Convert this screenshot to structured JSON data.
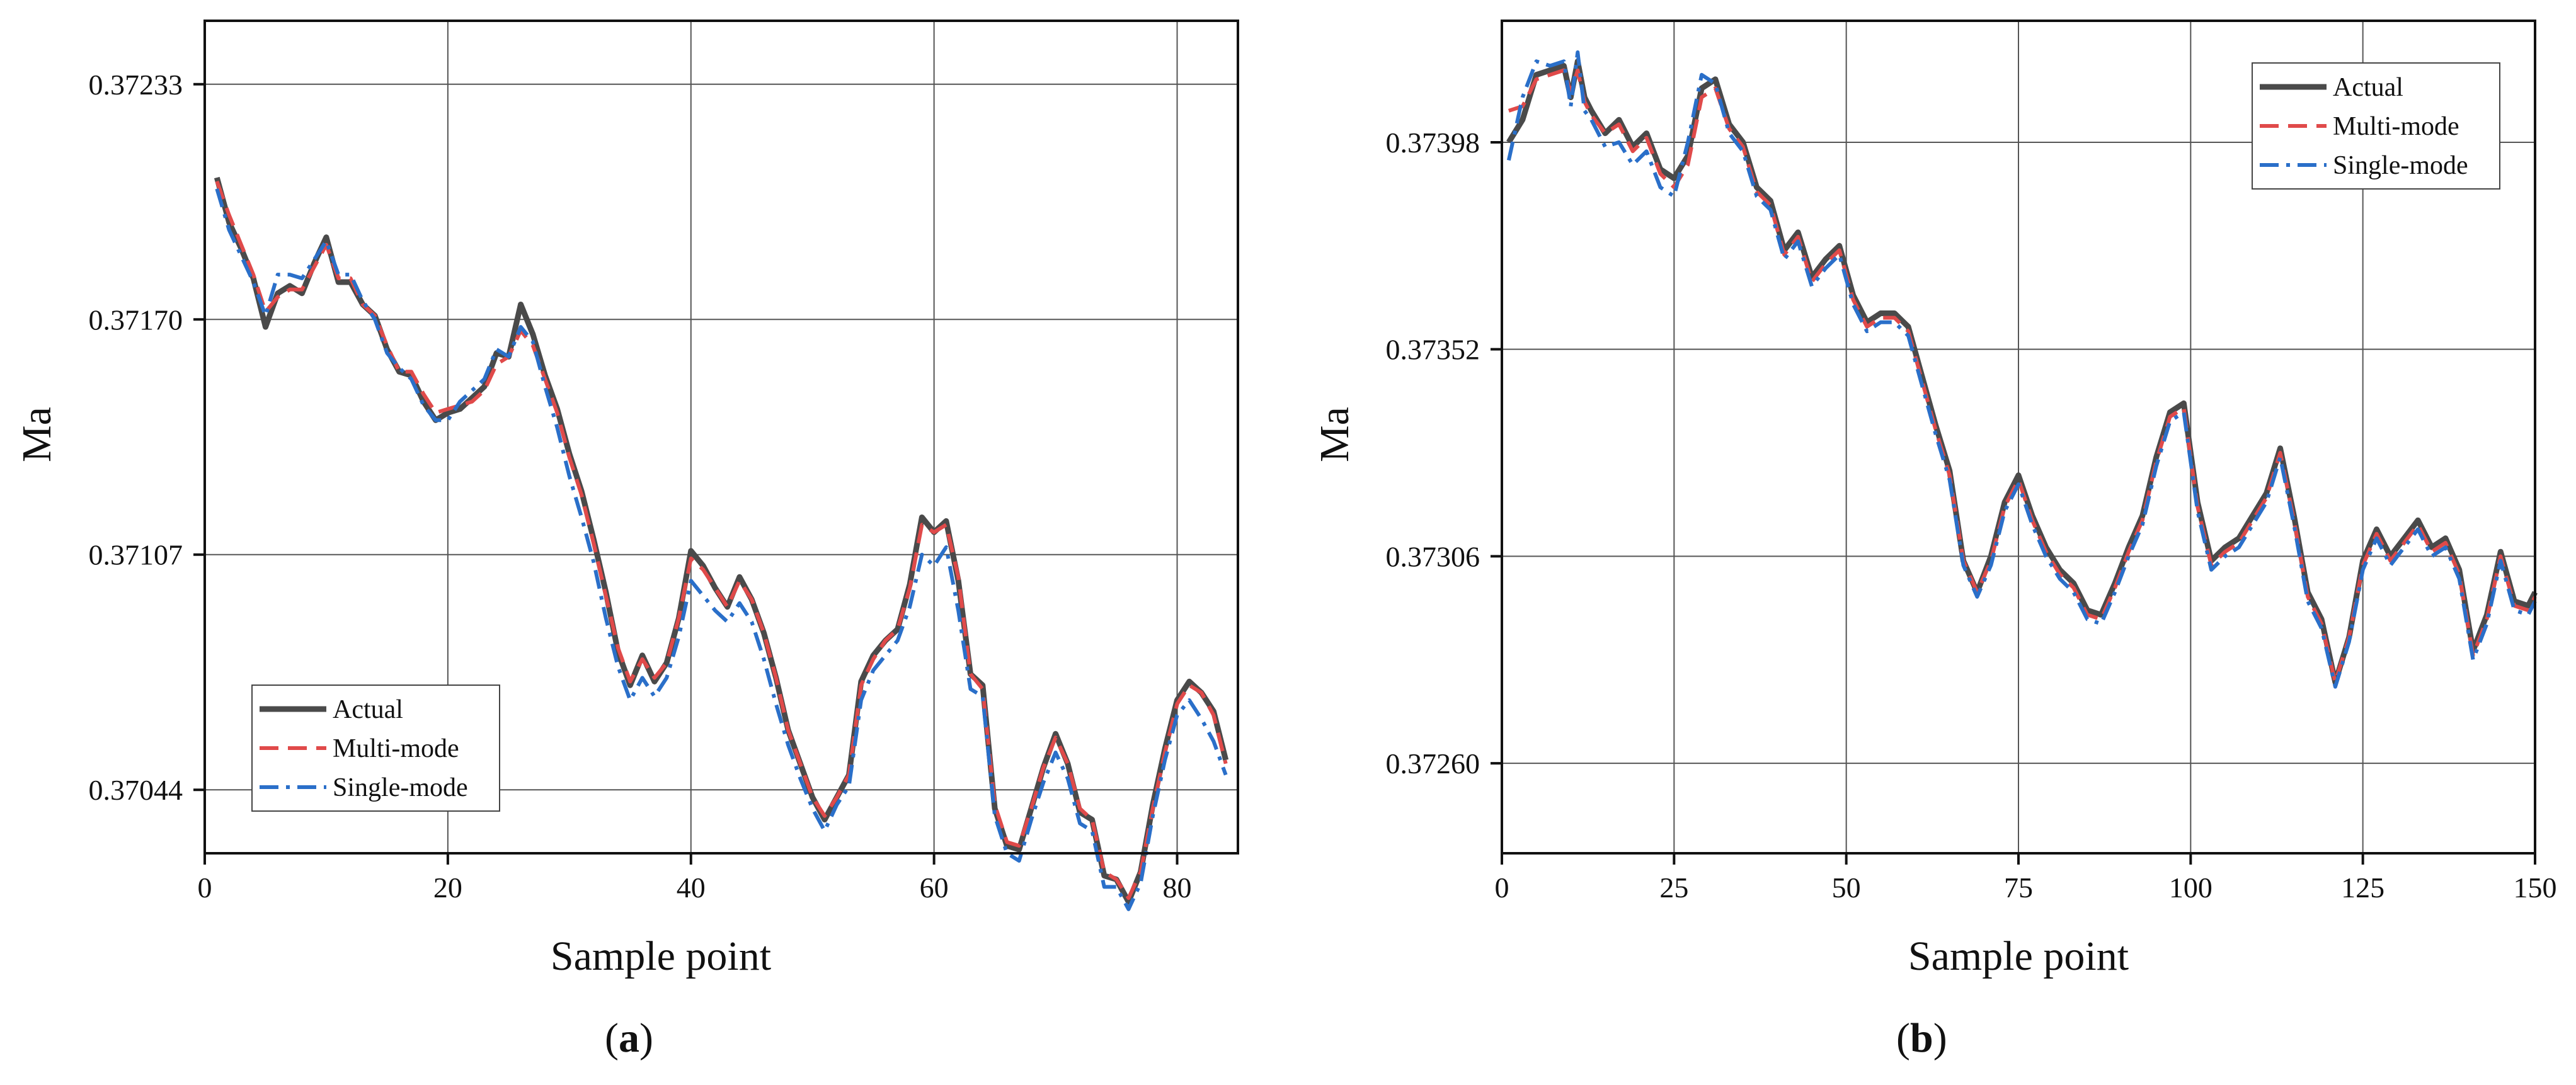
{
  "chart_data": [
    {
      "type": "line",
      "panel_label_open": "(",
      "panel_label_letter": "a",
      "panel_label_close": ")",
      "xlabel": "Sample point",
      "ylabel": "Ma",
      "xlim": [
        0,
        85
      ],
      "ylim": [
        0.37027,
        0.3725
      ],
      "xticks": [
        0,
        20,
        40,
        60,
        80
      ],
      "yticks": [
        0.37044,
        0.37107,
        0.3717,
        0.37233
      ],
      "ytick_labels": [
        "0.37044",
        "0.37107",
        "0.37170",
        "0.37233"
      ],
      "grid": true,
      "legend_position": "bottom-left",
      "x": [
        1,
        2,
        3,
        4,
        5,
        6,
        7,
        8,
        9,
        10,
        11,
        12,
        13,
        14,
        15,
        16,
        17,
        18,
        19,
        20,
        21,
        22,
        23,
        24,
        25,
        26,
        27,
        28,
        29,
        30,
        31,
        32,
        33,
        34,
        35,
        36,
        37,
        38,
        39,
        40,
        41,
        42,
        43,
        44,
        45,
        46,
        47,
        48,
        49,
        50,
        51,
        52,
        53,
        54,
        55,
        56,
        57,
        58,
        59,
        60,
        61,
        62,
        63,
        64,
        65,
        66,
        67,
        68,
        69,
        70,
        71,
        72,
        73,
        74,
        75,
        76,
        77,
        78,
        79,
        80,
        81,
        82,
        83,
        84
      ],
      "series": [
        {
          "name": "Actual",
          "color": "#4a4a4a",
          "dash": "solid",
          "values": [
            0.37208,
            0.37196,
            0.37189,
            0.37181,
            0.37168,
            0.37177,
            0.37179,
            0.37177,
            0.37185,
            0.37192,
            0.3718,
            0.3718,
            0.37174,
            0.37171,
            0.37162,
            0.37156,
            0.37155,
            0.37148,
            0.37143,
            0.37145,
            0.37146,
            0.37149,
            0.37152,
            0.37161,
            0.3716,
            0.37174,
            0.37166,
            0.37155,
            0.37146,
            0.37134,
            0.37124,
            0.37111,
            0.37097,
            0.37081,
            0.37072,
            0.3708,
            0.37073,
            0.37078,
            0.3709,
            0.37108,
            0.37104,
            0.37098,
            0.37093,
            0.37101,
            0.37095,
            0.37086,
            0.37074,
            0.3706,
            0.37051,
            0.37042,
            0.37036,
            0.37042,
            0.37048,
            0.37073,
            0.3708,
            0.37084,
            0.37087,
            0.37099,
            0.37117,
            0.37113,
            0.37116,
            0.371,
            0.37075,
            0.37072,
            0.37039,
            0.37029,
            0.37028,
            0.37039,
            0.3705,
            0.37059,
            0.37051,
            0.37038,
            0.37036,
            0.37021,
            0.3702,
            0.37014,
            0.37022,
            0.3704,
            0.37055,
            0.37068,
            0.37073,
            0.3707,
            0.37065,
            0.37052
          ]
        },
        {
          "name": "Multi-mode",
          "color": "#e04a4a",
          "dash": "dashed",
          "values": [
            0.37207,
            0.37198,
            0.3719,
            0.37182,
            0.37172,
            0.37176,
            0.37178,
            0.37178,
            0.37184,
            0.3719,
            0.37181,
            0.37181,
            0.37174,
            0.37171,
            0.37163,
            0.37156,
            0.37156,
            0.3715,
            0.37145,
            0.37146,
            0.37147,
            0.37148,
            0.37151,
            0.37158,
            0.3716,
            0.37167,
            0.37163,
            0.37154,
            0.37145,
            0.37133,
            0.37123,
            0.3711,
            0.37096,
            0.37082,
            0.37073,
            0.37079,
            0.37074,
            0.37078,
            0.3709,
            0.37106,
            0.37103,
            0.37098,
            0.37093,
            0.371,
            0.37095,
            0.37086,
            0.37074,
            0.3706,
            0.37051,
            0.37042,
            0.37037,
            0.37042,
            0.37048,
            0.37072,
            0.37079,
            0.37084,
            0.37087,
            0.37098,
            0.37115,
            0.37113,
            0.37115,
            0.37101,
            0.37075,
            0.37071,
            0.3704,
            0.3703,
            0.37029,
            0.37039,
            0.3705,
            0.37058,
            0.37051,
            0.37039,
            0.37036,
            0.37022,
            0.3702,
            0.37015,
            0.37022,
            0.37039,
            0.37054,
            0.37067,
            0.37072,
            0.3707,
            0.37064,
            0.37051
          ]
        },
        {
          "name": "Single-mode",
          "color": "#2a6fc9",
          "dash": "dashdot",
          "values": [
            0.37205,
            0.37194,
            0.37187,
            0.3718,
            0.37171,
            0.37182,
            0.37182,
            0.37181,
            0.37186,
            0.37191,
            0.37182,
            0.37182,
            0.37175,
            0.3717,
            0.37161,
            0.37157,
            0.37154,
            0.37147,
            0.37143,
            0.37143,
            0.37148,
            0.37151,
            0.37154,
            0.37162,
            0.3716,
            0.37168,
            0.37164,
            0.37152,
            0.37141,
            0.37128,
            0.37117,
            0.37105,
            0.3709,
            0.37077,
            0.37068,
            0.37074,
            0.37069,
            0.37074,
            0.37085,
            0.371,
            0.37096,
            0.37092,
            0.37089,
            0.37094,
            0.37089,
            0.37079,
            0.37067,
            0.37056,
            0.37047,
            0.37039,
            0.37033,
            0.3704,
            0.37045,
            0.37068,
            0.37076,
            0.3708,
            0.37084,
            0.37093,
            0.37107,
            0.37104,
            0.37109,
            0.37092,
            0.37071,
            0.37069,
            0.37037,
            0.37027,
            0.37025,
            0.37036,
            0.37046,
            0.37054,
            0.37047,
            0.37035,
            0.37033,
            0.37018,
            0.37018,
            0.37012,
            0.37019,
            0.37037,
            0.37052,
            0.37064,
            0.37068,
            0.37063,
            0.37057,
            0.37048
          ]
        }
      ]
    },
    {
      "type": "line",
      "panel_label_open": "(",
      "panel_label_letter": "b",
      "panel_label_close": ")",
      "xlabel": "Sample point",
      "ylabel": "Ma",
      "xlim": [
        0,
        150
      ],
      "ylim": [
        0.3724,
        0.37425
      ],
      "xticks": [
        0,
        25,
        50,
        75,
        100,
        125,
        150
      ],
      "yticks": [
        0.3726,
        0.37306,
        0.37352,
        0.37398
      ],
      "ytick_labels": [
        "0.37260",
        "0.37306",
        "0.37352",
        "0.37398"
      ],
      "grid": true,
      "legend_position": "top-right",
      "x": [
        1,
        3,
        5,
        7,
        9,
        10,
        11,
        12,
        13,
        15,
        17,
        19,
        21,
        23,
        25,
        27,
        29,
        31,
        33,
        35,
        37,
        39,
        41,
        43,
        45,
        47,
        49,
        51,
        53,
        55,
        57,
        59,
        61,
        63,
        65,
        67,
        69,
        71,
        73,
        75,
        77,
        79,
        81,
        83,
        85,
        87,
        89,
        91,
        93,
        95,
        97,
        99,
        101,
        103,
        105,
        107,
        109,
        111,
        113,
        115,
        117,
        119,
        121,
        123,
        125,
        127,
        129,
        131,
        133,
        135,
        137,
        139,
        141,
        143,
        145,
        147,
        149,
        150
      ],
      "series": [
        {
          "name": "Actual",
          "color": "#4a4a4a",
          "dash": "solid",
          "values": [
            0.37398,
            0.37403,
            0.37413,
            0.37414,
            0.37415,
            0.37408,
            0.37416,
            0.37408,
            0.37405,
            0.374,
            0.37403,
            0.37397,
            0.374,
            0.37392,
            0.3739,
            0.37395,
            0.3741,
            0.37412,
            0.37402,
            0.37398,
            0.37388,
            0.37385,
            0.37374,
            0.37378,
            0.37368,
            0.37372,
            0.37375,
            0.37364,
            0.37358,
            0.3736,
            0.3736,
            0.37357,
            0.37346,
            0.37335,
            0.37325,
            0.37305,
            0.37298,
            0.37306,
            0.37318,
            0.37324,
            0.37315,
            0.37308,
            0.37303,
            0.373,
            0.37294,
            0.37293,
            0.373,
            0.37308,
            0.37315,
            0.37328,
            0.37338,
            0.3734,
            0.37318,
            0.37305,
            0.37308,
            0.3731,
            0.37315,
            0.3732,
            0.3733,
            0.37315,
            0.37298,
            0.37292,
            0.37278,
            0.37288,
            0.37305,
            0.37312,
            0.37306,
            0.3731,
            0.37314,
            0.37308,
            0.3731,
            0.37303,
            0.37285,
            0.37293,
            0.37307,
            0.37296,
            0.37295,
            0.37298
          ]
        },
        {
          "name": "Multi-mode",
          "color": "#e04a4a",
          "dash": "dashed",
          "values": [
            0.37405,
            0.37406,
            0.37412,
            0.37413,
            0.37414,
            0.37409,
            0.37414,
            0.37407,
            0.37404,
            0.374,
            0.37402,
            0.37396,
            0.37399,
            0.37391,
            0.37388,
            0.37393,
            0.37408,
            0.3741,
            0.37401,
            0.37397,
            0.37387,
            0.37384,
            0.37373,
            0.37377,
            0.37367,
            0.37371,
            0.37374,
            0.37363,
            0.37357,
            0.37359,
            0.37359,
            0.37356,
            0.37345,
            0.37334,
            0.37324,
            0.37305,
            0.37298,
            0.37305,
            0.37317,
            0.37323,
            0.37314,
            0.37307,
            0.37302,
            0.37299,
            0.37293,
            0.37292,
            0.37299,
            0.37307,
            0.37314,
            0.37327,
            0.37337,
            0.37339,
            0.37317,
            0.37304,
            0.37307,
            0.37309,
            0.37314,
            0.37319,
            0.37329,
            0.37314,
            0.37297,
            0.37291,
            0.37278,
            0.37288,
            0.37304,
            0.37311,
            0.37305,
            0.37309,
            0.37313,
            0.37307,
            0.37309,
            0.37302,
            0.37284,
            0.37292,
            0.37306,
            0.37295,
            0.37294,
            0.37297
          ]
        },
        {
          "name": "Single-mode",
          "color": "#2a6fc9",
          "dash": "dashdot",
          "values": [
            0.37394,
            0.37408,
            0.37416,
            0.37415,
            0.37416,
            0.37406,
            0.37418,
            0.37405,
            0.37403,
            0.37397,
            0.37398,
            0.37393,
            0.37396,
            0.37388,
            0.37386,
            0.37398,
            0.37413,
            0.37411,
            0.374,
            0.37396,
            0.37386,
            0.37383,
            0.37372,
            0.37376,
            0.37366,
            0.3737,
            0.37373,
            0.37362,
            0.37356,
            0.37358,
            0.37358,
            0.37355,
            0.37344,
            0.37333,
            0.37323,
            0.37304,
            0.37297,
            0.37304,
            0.37316,
            0.37322,
            0.37313,
            0.37306,
            0.37301,
            0.37298,
            0.37292,
            0.37291,
            0.37298,
            0.37306,
            0.37313,
            0.37326,
            0.37336,
            0.37338,
            0.37316,
            0.37303,
            0.37306,
            0.37308,
            0.37313,
            0.37318,
            0.37328,
            0.37313,
            0.37296,
            0.3729,
            0.37277,
            0.37287,
            0.37303,
            0.3731,
            0.37304,
            0.37308,
            0.37312,
            0.37306,
            0.37308,
            0.37301,
            0.37283,
            0.37291,
            0.37305,
            0.37294,
            0.37293,
            0.37296
          ]
        }
      ]
    }
  ]
}
